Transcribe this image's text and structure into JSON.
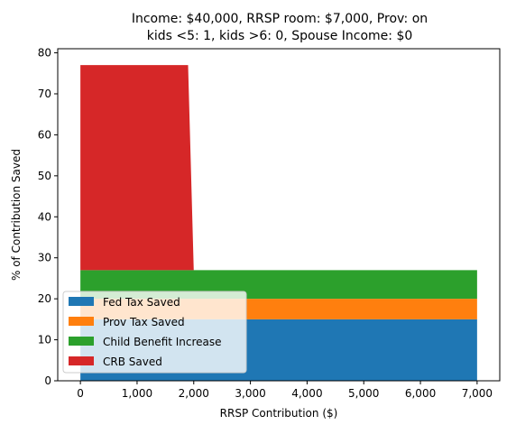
{
  "chart_data": {
    "type": "area",
    "title_lines": [
      "Income: $40,000,  RRSP room: $7,000, Prov: on",
      "kids <5: 1, kids >6: 0, Spouse Income: $0"
    ],
    "xlabel": "RRSP Contribution ($)",
    "ylabel": "% of Contribution Saved",
    "xlim": [
      -400,
      7400
    ],
    "ylim": [
      0,
      81
    ],
    "x_ticks": [
      0,
      1000,
      2000,
      3000,
      4000,
      5000,
      6000,
      7000
    ],
    "x_tick_labels": [
      "0",
      "1,000",
      "2,000",
      "3,000",
      "4,000",
      "5,000",
      "6,000",
      "7,000"
    ],
    "y_ticks": [
      0,
      10,
      20,
      30,
      40,
      50,
      60,
      70,
      80
    ],
    "y_tick_labels": [
      "0",
      "10",
      "20",
      "30",
      "40",
      "50",
      "60",
      "70",
      "80"
    ],
    "stacked": true,
    "grid": false,
    "legend_position": "lower-left",
    "series": [
      {
        "name": "Fed Tax Saved",
        "color": "#1f77b4",
        "points": [
          [
            0,
            15
          ],
          [
            7000,
            15
          ]
        ]
      },
      {
        "name": "Prov Tax Saved",
        "color": "#ff7f0e",
        "points": [
          [
            0,
            5
          ],
          [
            7000,
            5
          ]
        ]
      },
      {
        "name": "Child Benefit Increase",
        "color": "#2ca02c",
        "points": [
          [
            0,
            7
          ],
          [
            7000,
            7
          ]
        ]
      },
      {
        "name": "CRB Saved",
        "color": "#d62728",
        "points": [
          [
            0,
            50
          ],
          [
            1900,
            50
          ],
          [
            2000,
            0
          ],
          [
            7000,
            0
          ]
        ]
      }
    ]
  }
}
